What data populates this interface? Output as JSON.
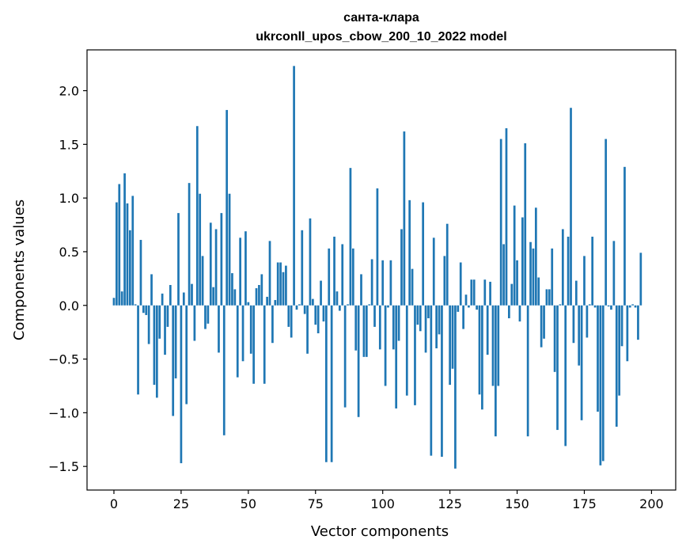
{
  "chart_data": {
    "type": "bar",
    "title_line1": "санта-клара",
    "title_line2": "ukrconll_upos_cbow_200_10_2022 model",
    "xlabel": "Vector components",
    "ylabel": "Components values",
    "xlim": [
      -10,
      209
    ],
    "ylim": [
      -1.72,
      2.38
    ],
    "x_ticks": [
      0,
      25,
      50,
      75,
      100,
      125,
      150,
      175,
      200
    ],
    "x_tick_labels": [
      "0",
      "25",
      "50",
      "75",
      "100",
      "125",
      "150",
      "175",
      "200"
    ],
    "y_ticks": [
      -1.5,
      -1.0,
      -0.5,
      0.0,
      0.5,
      1.0,
      1.5,
      2.0
    ],
    "y_tick_labels": [
      "−1.5",
      "−1.0",
      "−0.5",
      "0.0",
      "0.5",
      "1.0",
      "1.5",
      "2.0"
    ],
    "bar_color": "#1f77b4",
    "values": [
      0.07,
      0.96,
      1.13,
      0.13,
      1.23,
      0.95,
      0.7,
      1.02,
      0.01,
      -0.83,
      0.61,
      -0.07,
      -0.09,
      -0.36,
      0.29,
      -0.74,
      -0.86,
      -0.31,
      0.11,
      -0.46,
      -0.2,
      0.19,
      -1.03,
      -0.68,
      0.86,
      -1.47,
      0.12,
      -0.92,
      1.14,
      0.2,
      -0.33,
      1.67,
      1.04,
      0.46,
      -0.22,
      -0.17,
      0.77,
      0.17,
      0.71,
      -0.44,
      0.86,
      -1.21,
      1.82,
      1.04,
      0.3,
      0.15,
      -0.67,
      0.63,
      -0.52,
      0.69,
      0.03,
      -0.45,
      -0.73,
      0.16,
      0.19,
      0.29,
      -0.73,
      0.08,
      0.6,
      -0.35,
      0.05,
      0.4,
      0.4,
      0.31,
      0.37,
      -0.2,
      -0.3,
      2.23,
      -0.04,
      0.01,
      0.7,
      -0.08,
      -0.45,
      0.81,
      0.06,
      -0.18,
      -0.26,
      0.23,
      -0.15,
      -1.46,
      0.53,
      -1.46,
      0.64,
      0.13,
      -0.05,
      0.57,
      -0.95,
      0.01,
      1.28,
      0.53,
      -0.42,
      -1.04,
      0.29,
      -0.48,
      -0.48,
      0.01,
      0.43,
      -0.2,
      1.09,
      -0.41,
      0.42,
      -0.75,
      -0.02,
      0.42,
      -0.41,
      -0.96,
      -0.33,
      0.71,
      1.62,
      -0.84,
      0.98,
      0.34,
      -0.93,
      -0.18,
      -0.24,
      0.96,
      -0.44,
      -0.12,
      -1.4,
      0.63,
      -0.4,
      -0.27,
      -1.41,
      0.46,
      0.76,
      -0.74,
      -0.59,
      -1.52,
      -0.06,
      0.4,
      -0.22,
      0.1,
      -0.02,
      0.24,
      0.24,
      -0.04,
      -0.83,
      -0.97,
      0.24,
      -0.46,
      0.22,
      -0.75,
      -1.22,
      -0.75,
      1.55,
      0.57,
      1.65,
      -0.12,
      0.2,
      0.93,
      0.42,
      -0.15,
      0.82,
      1.51,
      -1.22,
      0.59,
      0.53,
      0.91,
      0.26,
      -0.39,
      -0.31,
      0.15,
      0.15,
      0.53,
      -0.62,
      -1.16,
      0.01,
      0.71,
      -1.31,
      0.64,
      1.84,
      -0.35,
      0.23,
      -0.56,
      -1.07,
      0.46,
      -0.3,
      0.01,
      0.64,
      -0.02,
      -0.99,
      -1.49,
      -1.45,
      1.55,
      -0.01,
      -0.04,
      0.6,
      -1.13,
      -0.84,
      -0.38,
      1.29,
      -0.52,
      -0.02,
      0.01,
      -0.02,
      -0.32,
      0.49
    ]
  }
}
